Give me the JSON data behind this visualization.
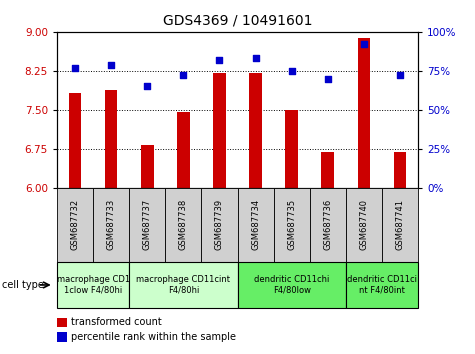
{
  "title": "GDS4369 / 10491601",
  "samples": [
    "GSM687732",
    "GSM687733",
    "GSM687737",
    "GSM687738",
    "GSM687739",
    "GSM687734",
    "GSM687735",
    "GSM687736",
    "GSM687740",
    "GSM687741"
  ],
  "transformed_count": [
    7.82,
    7.88,
    6.82,
    7.45,
    8.2,
    8.2,
    7.5,
    6.68,
    8.88,
    6.68
  ],
  "percentile_rank": [
    77,
    79,
    65,
    72,
    82,
    83,
    75,
    70,
    92,
    72
  ],
  "ylim_left": [
    6,
    9
  ],
  "ylim_right": [
    0,
    100
  ],
  "yticks_left": [
    6,
    6.75,
    7.5,
    8.25,
    9
  ],
  "yticks_right": [
    0,
    25,
    50,
    75,
    100
  ],
  "hlines": [
    6.75,
    7.5,
    8.25
  ],
  "bar_color": "#cc0000",
  "dot_color": "#0000cc",
  "bar_width": 0.35,
  "cell_type_groups": [
    {
      "label": "macrophage CD1\n1clow F4/80hi",
      "start": 0,
      "end": 2,
      "color": "#ccffcc"
    },
    {
      "label": "macrophage CD11cint\nF4/80hi",
      "start": 2,
      "end": 5,
      "color": "#ccffcc"
    },
    {
      "label": "dendritic CD11chi\nF4/80low",
      "start": 5,
      "end": 8,
      "color": "#66ee66"
    },
    {
      "label": "dendritic CD11ci\nnt F4/80int",
      "start": 8,
      "end": 10,
      "color": "#66ee66"
    }
  ],
  "cell_type_label": "cell type",
  "legend_bar_label": "transformed count",
  "legend_dot_label": "percentile rank within the sample",
  "left_ylabel_color": "#cc0000",
  "right_ylabel_color": "#0000cc",
  "sample_box_color": "#d0d0d0",
  "title_fontsize": 10,
  "tick_fontsize": 7.5,
  "sample_fontsize": 6,
  "celltype_fontsize": 6,
  "legend_fontsize": 7
}
